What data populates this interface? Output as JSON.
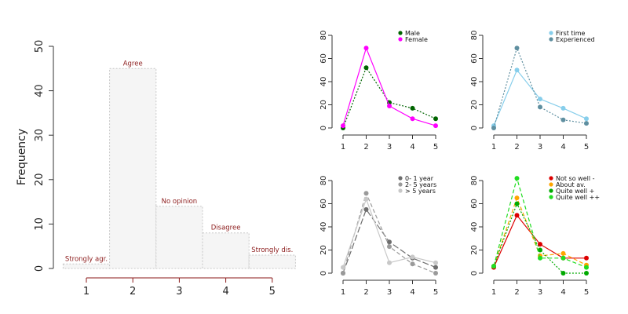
{
  "chart_data": [
    {
      "type": "bar",
      "title": "",
      "xlabel": "",
      "ylabel": "Frequency",
      "categories": [
        1,
        2,
        3,
        4,
        5
      ],
      "values": [
        1,
        45,
        14,
        8,
        3
      ],
      "bar_labels": [
        "Strongly agr.",
        "Agree",
        "No opinion",
        "Disagree",
        "Strongly dis."
      ],
      "ylim": [
        0,
        50
      ],
      "yticks": [
        0,
        10,
        20,
        30,
        40,
        50
      ],
      "xticks": [
        1,
        2,
        3,
        4,
        5
      ],
      "grid": false,
      "colors": {
        "bar_fill": "#f5f5f5",
        "bar_stroke": "#c8c8c8",
        "label": "#8b1a1a",
        "axis_ticks": "#8b1a1a"
      }
    },
    {
      "type": "line",
      "x": [
        1,
        2,
        3,
        4,
        5
      ],
      "ylim": [
        0,
        80
      ],
      "yticks": [
        0,
        20,
        40,
        60,
        80
      ],
      "legend_position": "top-right",
      "series": [
        {
          "name": "Male",
          "values": [
            0,
            52,
            22,
            17,
            8
          ],
          "color": "#006400",
          "dash": "dotted"
        },
        {
          "name": "Female",
          "values": [
            2,
            69,
            19,
            8,
            2
          ],
          "color": "#ff00ff",
          "dash": "solid"
        }
      ]
    },
    {
      "type": "line",
      "x": [
        1,
        2,
        3,
        4,
        5
      ],
      "ylim": [
        0,
        80
      ],
      "yticks": [
        0,
        20,
        40,
        60,
        80
      ],
      "legend_position": "top-right",
      "series": [
        {
          "name": "First time",
          "values": [
            2,
            50,
            25,
            17,
            8
          ],
          "color": "#87ceeb",
          "dash": "solid"
        },
        {
          "name": "Experienced",
          "values": [
            0,
            69,
            18,
            7,
            4
          ],
          "color": "#5f8fa0",
          "dash": "dotted"
        }
      ]
    },
    {
      "type": "line",
      "x": [
        1,
        2,
        3,
        4,
        5
      ],
      "ylim": [
        0,
        80
      ],
      "yticks": [
        0,
        20,
        40,
        60,
        80
      ],
      "legend_position": "top-right",
      "series": [
        {
          "name": "0- 1 year",
          "values": [
            0,
            55,
            27,
            13,
            5
          ],
          "color": "#6e6e6e",
          "dash": "longdash"
        },
        {
          "name": "2- 5 years",
          "values": [
            0,
            69,
            23,
            8,
            0
          ],
          "color": "#9a9a9a",
          "dash": "dashed"
        },
        {
          "name": "> 5 years",
          "values": [
            5,
            64,
            9,
            14,
            9
          ],
          "color": "#c8c8c8",
          "dash": "solid"
        }
      ]
    },
    {
      "type": "line",
      "x": [
        1,
        2,
        3,
        4,
        5
      ],
      "ylim": [
        0,
        80
      ],
      "yticks": [
        0,
        20,
        40,
        60,
        80
      ],
      "legend_position": "top-right",
      "series": [
        {
          "name": "Not so well -",
          "values": [
            5,
            50,
            25,
            13,
            13
          ],
          "color": "#dd0000",
          "dash": "solid"
        },
        {
          "name": "About av.",
          "values": [
            6,
            65,
            15,
            17,
            7
          ],
          "color": "#ffa500",
          "dash": "dashed"
        },
        {
          "name": "Quite well +",
          "values": [
            6,
            60,
            20,
            0,
            0
          ],
          "color": "#00aa00",
          "dash": "dotted"
        },
        {
          "name": "Quite well ++",
          "values": [
            6,
            82,
            13,
            13,
            5
          ],
          "color": "#22dd22",
          "dash": "dashed"
        }
      ]
    }
  ]
}
